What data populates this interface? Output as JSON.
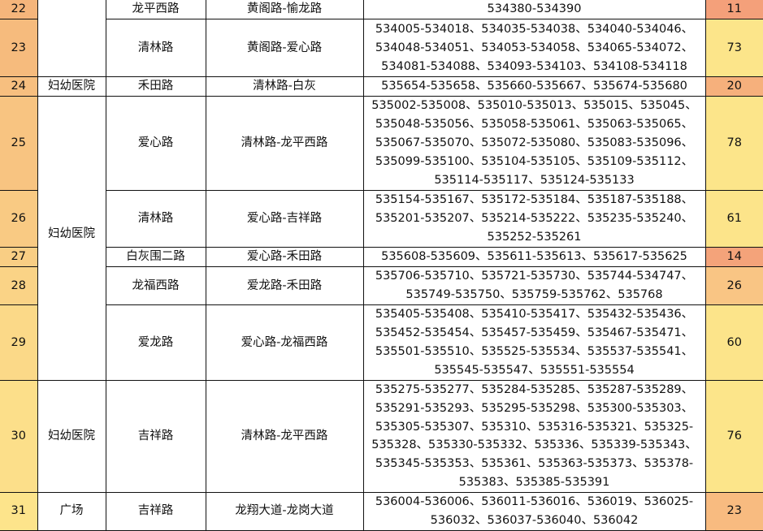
{
  "rows": [
    {
      "no": "22",
      "area": "",
      "road": "龙平西路",
      "segment": "黄阁路-愉龙路",
      "codes": "534380-534390",
      "count": "11",
      "no_color": "#f5b57b",
      "count_color": "#f4a07a"
    },
    {
      "no": "23",
      "area": "",
      "road": "清林路",
      "segment": "黄阁路-爱心路",
      "codes": "534005-534018、534035-534038、534040-534046、534048-534051、534053-534058、534065-534072、534081-534088、534093-534103、534108-534118",
      "count": "73",
      "no_color": "#f6bb7d",
      "count_color": "#fce58a"
    },
    {
      "no": "24",
      "area": "妇幼医院",
      "road": "禾田路",
      "segment": "清林路-白灰",
      "codes": "535654-535658、535660-535667、535674-535680",
      "count": "20",
      "no_color": "#f7bf7f",
      "count_color": "#f6b07c"
    },
    {
      "no": "25",
      "area": "妇幼医院",
      "road": "爱心路",
      "segment": "清林路-龙平西路",
      "codes": "535002-535008、535010-535013、535015、535045、535048-535056、535058-535061、535063-535065、535067-535070、535072-535080、535083-535096、535099-535100、535104-535105、535109-535112、535114-535117、535124-535133",
      "count": "78",
      "no_color": "#f8c481",
      "count_color": "#fce58a"
    },
    {
      "no": "26",
      "area": "",
      "road": "清林路",
      "segment": "爱心路-吉祥路",
      "codes": "535154-535167、535172-535184、535187-535188、535201-535207、535214-535222、535235-535240、535252-535261",
      "count": "61",
      "no_color": "#f9ca83",
      "count_color": "#fce48a"
    },
    {
      "no": "27",
      "area": "",
      "road": "白灰围二路",
      "segment": "爱心路-禾田路",
      "codes": "535608-535609、535611-535613、535617-535625",
      "count": "14",
      "no_color": "#f9ce84",
      "count_color": "#f4a37a"
    },
    {
      "no": "28",
      "area": "",
      "road": "龙福西路",
      "segment": "爱龙路-禾田路",
      "codes": "535706-535710、535721-535730、535744-534747、535749-535750、535759-535762、535768",
      "count": "26",
      "no_color": "#fad386",
      "count_color": "#f9c584"
    },
    {
      "no": "29",
      "area": "",
      "road": "爱龙路",
      "segment": "爱心路-龙福西路",
      "codes": "535405-535408、535410-535417、535432-535436、535452-535454、535457-535459、535467-535471、535501-535510、535525-535534、535537-535541、535545-535547、535551-535554",
      "count": "60",
      "no_color": "#fbd988",
      "count_color": "#fce48a"
    },
    {
      "no": "30",
      "area": "妇幼医院",
      "road": "吉祥路",
      "segment": "清林路-龙平西路",
      "codes": "535275-535277、535284-535285、535287-535289、535291-535293、535295-535298、535300-535303、535305-535307、535310、535316-535321、535325-535328、535330-535332、535336、535339-535343、535345-535353、535361、535363-535373、535378-535383、535385-535391",
      "count": "76",
      "no_color": "#fcdf8a",
      "count_color": "#fce58a"
    },
    {
      "no": "31",
      "area": "广场",
      "road": "吉祥路",
      "segment": "龙翔大道-龙岗大道",
      "codes": "536004-536006、536011-536016、536019、536025-536032、536037-536040、536042",
      "count": "23",
      "no_color": "#fde48b",
      "count_color": "#f8bb80"
    }
  ]
}
